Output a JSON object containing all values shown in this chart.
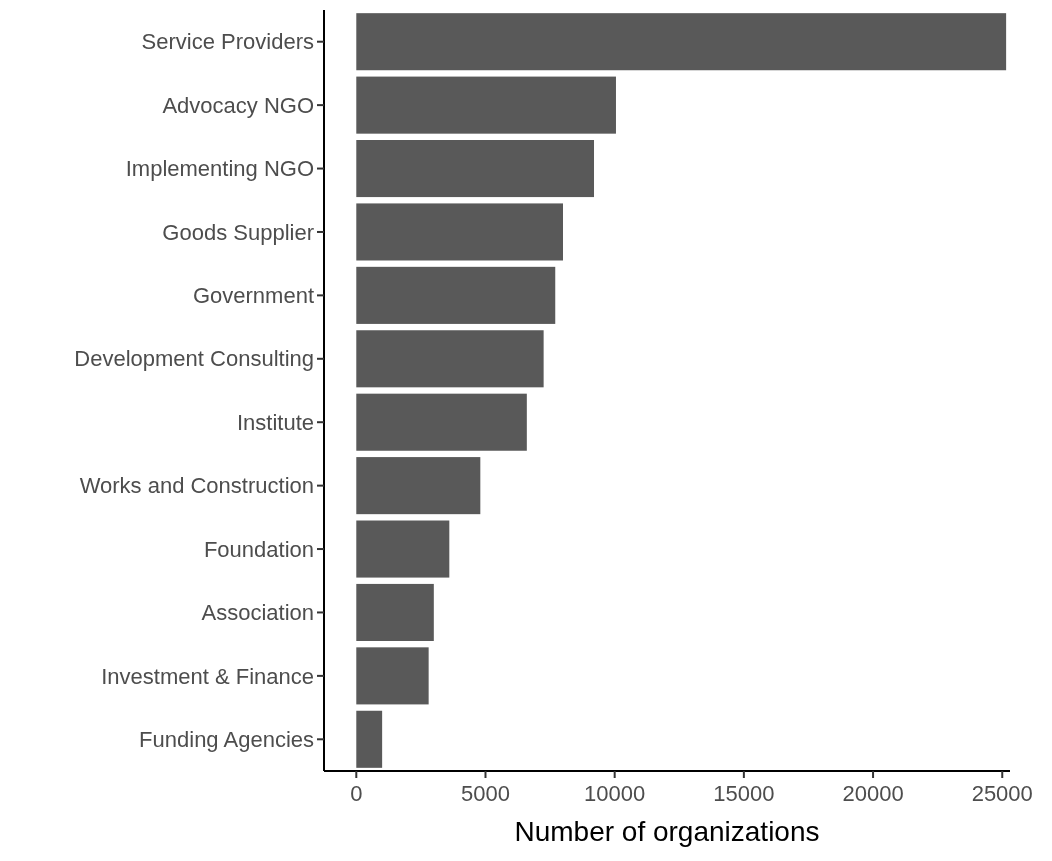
{
  "chart_data": {
    "type": "bar",
    "orientation": "horizontal",
    "xlabel": "Number of organizations",
    "categories": [
      "Service Providers",
      "Advocacy NGO",
      "Implementing NGO",
      "Goods Supplier",
      "Government",
      "Development Consulting",
      "Institute",
      "Works and Construction",
      "Foundation",
      "Association",
      "Investment & Finance",
      "Funding Agencies"
    ],
    "values": [
      25150,
      10050,
      9200,
      8000,
      7700,
      7250,
      6600,
      4800,
      3600,
      3000,
      2800,
      1000
    ],
    "color": "#595959",
    "xlim": [
      -1250,
      25300
    ],
    "xticks": [
      0,
      5000,
      10000,
      15000,
      20000,
      25000
    ],
    "grid": false
  }
}
